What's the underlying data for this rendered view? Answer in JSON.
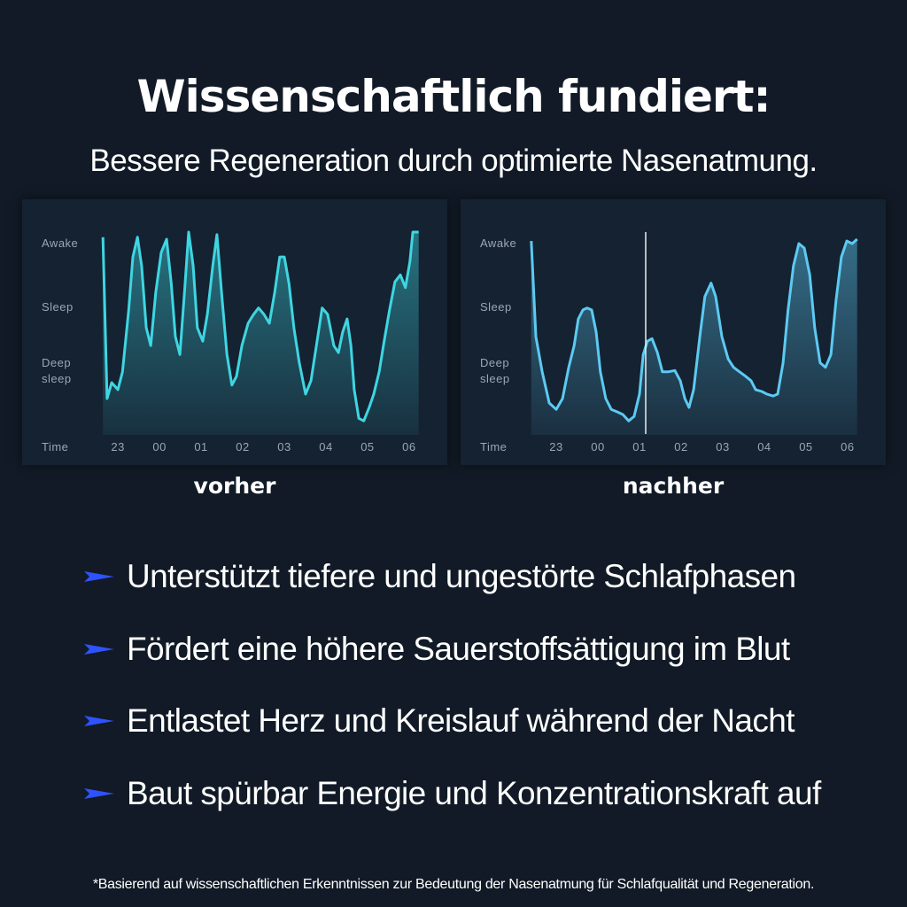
{
  "header": {
    "title": "Wissenschaftlich fundiert:",
    "subtitle": "Bessere Regeneration durch optimierte Nasenatmung."
  },
  "chart_data": [
    {
      "type": "line",
      "caption": "vorher",
      "x_label": "Time",
      "xlim": [
        -0.45,
        7.3
      ],
      "xticks": [
        {
          "value": 0,
          "label": "23"
        },
        {
          "value": 1,
          "label": "00"
        },
        {
          "value": 2,
          "label": "01"
        },
        {
          "value": 3,
          "label": "02"
        },
        {
          "value": 4,
          "label": "03"
        },
        {
          "value": 5,
          "label": "04"
        },
        {
          "value": 6,
          "label": "05"
        },
        {
          "value": 7,
          "label": "06"
        }
      ],
      "ylim": [
        0,
        3.3
      ],
      "yticks": [
        {
          "value": 3,
          "label": "Awake"
        },
        {
          "value": 2,
          "label": "Sleep"
        },
        {
          "value": 1,
          "label": "Deep sleep"
        }
      ],
      "x": [
        -0.36,
        -0.26,
        -0.15,
        0,
        0.11,
        0.26,
        0.36,
        0.47,
        0.57,
        0.68,
        0.79,
        0.91,
        1.04,
        1.17,
        1.28,
        1.38,
        1.49,
        1.6,
        1.7,
        1.81,
        1.91,
        2.04,
        2.15,
        2.28,
        2.38,
        2.49,
        2.62,
        2.74,
        2.85,
        2.98,
        3.13,
        3.26,
        3.38,
        3.51,
        3.64,
        3.77,
        3.89,
        4.0,
        4.11,
        4.23,
        4.36,
        4.51,
        4.64,
        4.77,
        4.91,
        5.04,
        5.19,
        5.3,
        5.4,
        5.51,
        5.6,
        5.68,
        5.79,
        5.91,
        6.04,
        6.15,
        6.28,
        6.4,
        6.53,
        6.66,
        6.79,
        6.91,
        7.02,
        7.09,
        7.23
      ],
      "series": [
        {
          "color": "#3ed6e2",
          "values": [
            3.1,
            0.57,
            0.82,
            0.71,
            0.99,
            1.96,
            2.79,
            3.1,
            2.65,
            1.68,
            1.4,
            2.24,
            2.86,
            3.07,
            2.38,
            1.54,
            1.26,
            2.24,
            3.18,
            2.65,
            1.68,
            1.47,
            1.89,
            2.65,
            3.14,
            2.24,
            1.26,
            0.78,
            0.92,
            1.4,
            1.75,
            1.89,
            1.99,
            1.89,
            1.75,
            2.24,
            2.79,
            2.79,
            2.38,
            1.68,
            1.13,
            0.64,
            0.85,
            1.4,
            1.99,
            1.89,
            1.4,
            1.29,
            1.61,
            1.82,
            1.4,
            0.71,
            0.26,
            0.22,
            0.43,
            0.64,
            0.99,
            1.47,
            1.96,
            2.4,
            2.51,
            2.31,
            2.72,
            3.18,
            3.18
          ]
        }
      ]
    },
    {
      "type": "line",
      "caption": "nachher",
      "x_label": "Time",
      "xlim": [
        -0.65,
        7.3
      ],
      "xticks": [
        {
          "value": 0,
          "label": "23"
        },
        {
          "value": 1,
          "label": "00"
        },
        {
          "value": 2,
          "label": "01"
        },
        {
          "value": 3,
          "label": "02"
        },
        {
          "value": 4,
          "label": "03"
        },
        {
          "value": 5,
          "label": "04"
        },
        {
          "value": 6,
          "label": "05"
        },
        {
          "value": 7,
          "label": "06"
        }
      ],
      "ylim": [
        0,
        3.3
      ],
      "yticks": [
        {
          "value": 3,
          "label": "Awake"
        },
        {
          "value": 2,
          "label": "Sleep"
        },
        {
          "value": 1,
          "label": "Deep sleep"
        }
      ],
      "x": [
        -0.6,
        -0.49,
        -0.34,
        -0.17,
        0,
        0.15,
        0.3,
        0.43,
        0.53,
        0.64,
        0.74,
        0.85,
        0.96,
        1.06,
        1.19,
        1.32,
        1.47,
        1.6,
        1.74,
        1.87,
        2.0,
        2.09,
        2.19,
        2.3,
        2.43,
        2.55,
        2.7,
        2.85,
        2.98,
        3.09,
        3.19,
        3.3,
        3.45,
        3.57,
        3.72,
        3.83,
        3.98,
        4.13,
        4.26,
        4.4,
        4.55,
        4.68,
        4.79,
        4.94,
        5.06,
        5.21,
        5.32,
        5.45,
        5.57,
        5.7,
        5.83,
        5.96,
        6.09,
        6.21,
        6.34,
        6.47,
        6.6,
        6.72,
        6.85,
        6.98,
        7.11,
        7.23
      ],
      "series": [
        {
          "color": "#5ccaf2",
          "values": [
            3.04,
            1.54,
            0.99,
            0.5,
            0.4,
            0.57,
            1.06,
            1.4,
            1.82,
            1.96,
            1.99,
            1.96,
            1.61,
            0.99,
            0.57,
            0.4,
            0.36,
            0.32,
            0.22,
            0.29,
            0.64,
            1.26,
            1.47,
            1.51,
            1.29,
            0.99,
            0.99,
            1.01,
            0.85,
            0.57,
            0.43,
            0.71,
            1.54,
            2.17,
            2.38,
            2.17,
            1.54,
            1.19,
            1.06,
            0.99,
            0.92,
            0.85,
            0.71,
            0.68,
            0.64,
            0.61,
            0.64,
            1.13,
            1.96,
            2.65,
            3.0,
            2.93,
            2.51,
            1.68,
            1.13,
            1.06,
            1.26,
            2.1,
            2.79,
            3.04,
            3.0,
            3.07
          ]
        }
      ]
    }
  ],
  "bullets": [
    "Unterstützt tiefere und ungestörte Schlafphasen",
    "Fördert eine höhere Sauerstoffsättigung im Blut",
    "Entlastet Herz und Kreislauf während der Nacht",
    "Baut spürbar Energie und Konzentrationskraft auf"
  ],
  "footnote": "*Basierend auf wissenschaftlichen Erkenntnissen zur Bedeutung der Nasenatmung für Schlafqualität und Regeneration."
}
